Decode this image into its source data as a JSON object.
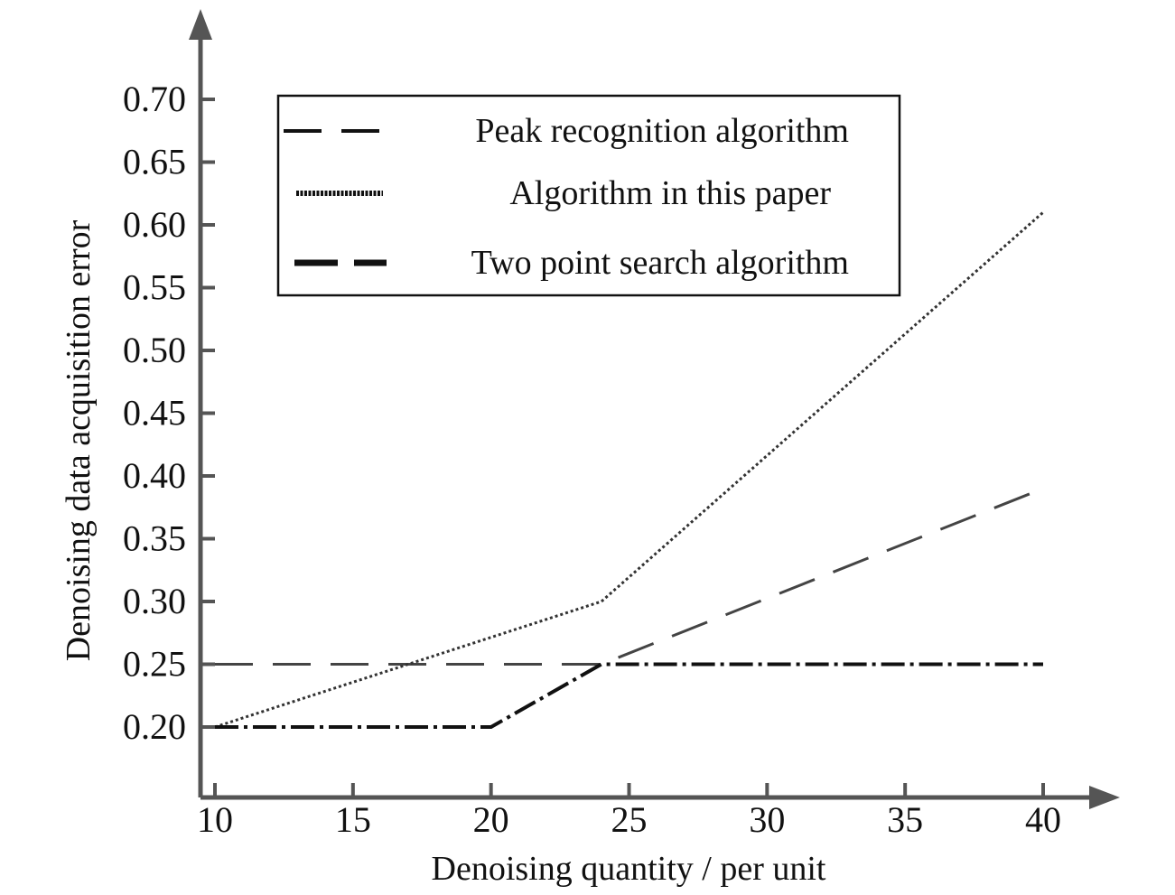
{
  "chart_data": {
    "type": "line",
    "xlabel": "Denoising quantity / per unit",
    "ylabel": "Denoising data acquisition error",
    "xlim": [
      10,
      40
    ],
    "ylim": [
      0.2,
      0.7
    ],
    "x_ticks": [
      "10",
      "15",
      "20",
      "25",
      "30",
      "35",
      "40"
    ],
    "y_ticks": [
      "0.20",
      "0.25",
      "0.30",
      "0.35",
      "0.40",
      "0.45",
      "0.50",
      "0.55",
      "0.60",
      "0.65",
      "0.70"
    ],
    "grid": false,
    "legend_position": "top-left",
    "series": [
      {
        "name": "Peak recognition algorithm",
        "style": "long-dash",
        "color": "#444444",
        "points": [
          [
            10,
            0.25
          ],
          [
            24,
            0.25
          ],
          [
            40,
            0.39
          ]
        ]
      },
      {
        "name": "Algorithm in this paper",
        "style": "dotted",
        "color": "#333333",
        "points": [
          [
            10,
            0.2
          ],
          [
            24,
            0.3
          ],
          [
            40,
            0.61
          ]
        ]
      },
      {
        "name": "Two point search algorithm",
        "style": "dash-dot",
        "color": "#111111",
        "points": [
          [
            10,
            0.2
          ],
          [
            20,
            0.2
          ],
          [
            24,
            0.25
          ],
          [
            40,
            0.25
          ]
        ]
      }
    ]
  }
}
